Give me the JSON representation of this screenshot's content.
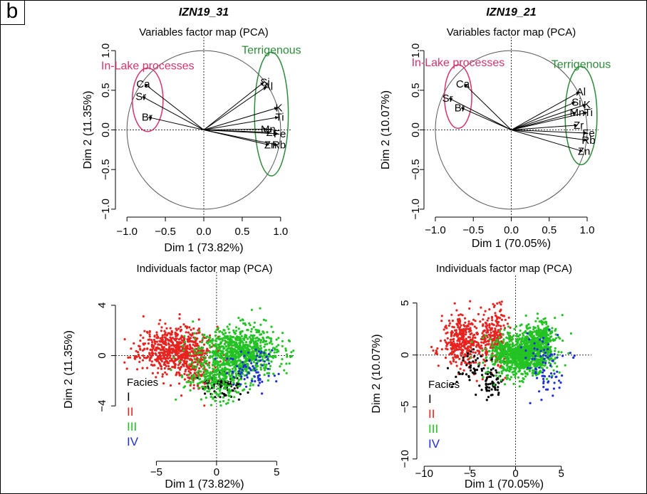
{
  "panel_label": "b",
  "colors": {
    "lake": "#d6336c",
    "terrigenous": "#2e8b3a",
    "facies_I": "#000000",
    "facies_II": "#e8231f",
    "facies_III": "#22c322",
    "facies_IV": "#1f2fd6"
  },
  "chart_data": [
    {
      "type": "scatter",
      "subtype": "pca-variables",
      "title": "IZN19_31",
      "subtitle": "Variables factor map (PCA)",
      "xlabel": "Dim 1 (73.82%)",
      "ylabel": "Dim 2 (11.35%)",
      "xlim": [
        -1.15,
        1.15
      ],
      "ylim": [
        -1.1,
        1.1
      ],
      "xticks": [
        -1.0,
        -0.5,
        0.0,
        0.5,
        1.0
      ],
      "xtick_labels": [
        "−1.0",
        "−0.5",
        "0.0",
        "0.5",
        "1.0"
      ],
      "yticks": [
        -1.0,
        -0.5,
        0.0,
        0.5,
        1.0
      ],
      "ytick_labels": [
        "−1.0",
        "−0.5",
        "0.0",
        "0.5",
        "1.0"
      ],
      "variables": [
        {
          "name": "Ca",
          "x": -0.77,
          "y": 0.58
        },
        {
          "name": "Sr",
          "x": -0.8,
          "y": 0.42
        },
        {
          "name": "Br",
          "x": -0.72,
          "y": 0.16
        },
        {
          "name": "Si",
          "x": 0.78,
          "y": 0.6
        },
        {
          "name": "Al",
          "x": 0.82,
          "y": 0.55
        },
        {
          "name": "K",
          "x": 0.96,
          "y": 0.28
        },
        {
          "name": "Ti",
          "x": 0.97,
          "y": 0.16
        },
        {
          "name": "Mn",
          "x": 0.82,
          "y": 0.01
        },
        {
          "name": "Zr",
          "x": 0.86,
          "y": -0.03
        },
        {
          "name": "Fe",
          "x": 0.97,
          "y": -0.05
        },
        {
          "name": "Zn",
          "x": 0.85,
          "y": -0.19
        },
        {
          "name": "Rb",
          "x": 0.96,
          "y": -0.19
        }
      ],
      "groups": [
        {
          "label": "In-Lake processes",
          "color": "lake",
          "cx": -0.73,
          "cy": 0.38,
          "rx": 0.2,
          "ry": 0.4
        },
        {
          "label": "Terrigenous",
          "color": "terrigenous",
          "cx": 0.88,
          "cy": 0.2,
          "rx": 0.22,
          "ry": 0.78
        }
      ]
    },
    {
      "type": "scatter",
      "subtype": "pca-variables",
      "title": "IZN19_21",
      "subtitle": "Variables factor map (PCA)",
      "xlabel": "Dim 1 (70.05%)",
      "ylabel": "Dim 2 (10.07%)",
      "xlim": [
        -1.15,
        1.15
      ],
      "ylim": [
        -1.1,
        1.1
      ],
      "xticks": [
        -1.0,
        -0.5,
        0.0,
        0.5,
        1.0
      ],
      "xtick_labels": [
        "−1.0",
        "−0.5",
        "0.0",
        "0.5",
        "1.0"
      ],
      "yticks": [
        -1.0,
        -0.5,
        0.0,
        0.5,
        1.0
      ],
      "ytick_labels": [
        "−1.0",
        "−0.5",
        "0.0",
        "0.5",
        "1.0"
      ],
      "variables": [
        {
          "name": "Ca",
          "x": -0.62,
          "y": 0.58
        },
        {
          "name": "Sr",
          "x": -0.82,
          "y": 0.4
        },
        {
          "name": "Br",
          "x": -0.66,
          "y": 0.28
        },
        {
          "name": "Al",
          "x": 0.9,
          "y": 0.48
        },
        {
          "name": "Si",
          "x": 0.84,
          "y": 0.35
        },
        {
          "name": "K",
          "x": 0.98,
          "y": 0.32
        },
        {
          "name": "Mn",
          "x": 0.85,
          "y": 0.22
        },
        {
          "name": "Ti",
          "x": 1.0,
          "y": 0.22
        },
        {
          "name": "Zr",
          "x": 0.87,
          "y": 0.06
        },
        {
          "name": "Fe",
          "x": 1.0,
          "y": -0.04
        },
        {
          "name": "Rb",
          "x": 1.0,
          "y": -0.13
        },
        {
          "name": "Zn",
          "x": 0.94,
          "y": -0.27
        }
      ],
      "groups": [
        {
          "label": "In-Lake processes",
          "color": "lake",
          "cx": -0.7,
          "cy": 0.42,
          "rx": 0.18,
          "ry": 0.4
        },
        {
          "label": "Terrigenous",
          "color": "terrigenous",
          "cx": 0.92,
          "cy": 0.18,
          "rx": 0.21,
          "ry": 0.62
        }
      ]
    },
    {
      "type": "scatter",
      "subtype": "pca-individuals",
      "title": "",
      "subtitle": "Individuals factor map (PCA)",
      "xlabel": "Dim 1 (73.82%)",
      "ylabel": "Dim 2 (11.35%)",
      "xlim": [
        -8.4,
        6.4
      ],
      "ylim": [
        -8.4,
        6.2
      ],
      "xticks": [
        -5,
        0,
        5
      ],
      "xtick_labels": [
        "−5",
        "0",
        "5"
      ],
      "yticks": [
        -4,
        0,
        4
      ],
      "ytick_labels": [
        "−4",
        "0",
        "4"
      ],
      "legend": {
        "title": "Facies",
        "position": "bottom-left",
        "entries": [
          {
            "label": "I",
            "color": "facies_I"
          },
          {
            "label": "II",
            "color": "facies_II"
          },
          {
            "label": "III",
            "color": "facies_III"
          },
          {
            "label": "IV",
            "color": "facies_IV"
          }
        ]
      },
      "clusters": [
        {
          "facies": "II",
          "color": "facies_II",
          "n": 650,
          "cx": -3.4,
          "cy": 0.5,
          "sx": 1.5,
          "sy": 0.9,
          "seed": 11
        },
        {
          "facies": "II",
          "color": "facies_II",
          "n": 100,
          "cx": -1.6,
          "cy": -1.2,
          "sx": 0.9,
          "sy": 0.9,
          "seed": 12
        },
        {
          "facies": "I",
          "color": "facies_I",
          "n": 90,
          "cx": 0.5,
          "cy": -2.3,
          "sx": 0.9,
          "sy": 0.5,
          "seed": 13
        },
        {
          "facies": "III",
          "color": "facies_III",
          "n": 850,
          "cx": 2.0,
          "cy": 0.3,
          "sx": 1.6,
          "sy": 1.0,
          "seed": 14
        },
        {
          "facies": "III",
          "color": "facies_III",
          "n": 250,
          "cx": 0.0,
          "cy": -1.6,
          "sx": 1.2,
          "sy": 0.9,
          "seed": 15
        },
        {
          "facies": "IV",
          "color": "facies_IV",
          "n": 80,
          "cx": 3.0,
          "cy": -1.0,
          "sx": 1.0,
          "sy": 0.8,
          "seed": 16
        }
      ]
    },
    {
      "type": "scatter",
      "subtype": "pca-individuals",
      "title": "",
      "subtitle": "Individuals factor map (PCA)",
      "xlabel": "Dim 1 (70.05%)",
      "ylabel": "Dim 2 (10.07%)",
      "xlim": [
        -10.8,
        8.3
      ],
      "ylim": [
        -10.7,
        7.1
      ],
      "xticks": [
        -10,
        -5,
        0,
        5
      ],
      "xtick_labels": [
        "−10",
        "−5",
        "0",
        "5"
      ],
      "yticks": [
        -10,
        -5,
        0,
        5
      ],
      "ytick_labels": [
        "−10",
        "−5",
        "0",
        "5"
      ],
      "legend": {
        "title": "Facies",
        "position": "bottom-left",
        "entries": [
          {
            "label": "I",
            "color": "facies_I"
          },
          {
            "label": "II",
            "color": "facies_II"
          },
          {
            "label": "III",
            "color": "facies_III"
          },
          {
            "label": "IV",
            "color": "facies_IV"
          }
        ]
      },
      "clusters": [
        {
          "facies": "II",
          "color": "facies_II",
          "n": 350,
          "cx": -5.8,
          "cy": 1.2,
          "sx": 1.1,
          "sy": 1.2,
          "seed": 21
        },
        {
          "facies": "II",
          "color": "facies_II",
          "n": 250,
          "cx": -2.4,
          "cy": 1.6,
          "sx": 0.8,
          "sy": 1.4,
          "seed": 22
        },
        {
          "facies": "I",
          "color": "facies_I",
          "n": 60,
          "cx": -2.6,
          "cy": -2.8,
          "sx": 0.5,
          "sy": 0.6,
          "seed": 23
        },
        {
          "facies": "I",
          "color": "facies_I",
          "n": 50,
          "cx": -5.0,
          "cy": -1.5,
          "sx": 1.2,
          "sy": 1.0,
          "seed": 24
        },
        {
          "facies": "III",
          "color": "facies_III",
          "n": 900,
          "cx": 0.6,
          "cy": 0.0,
          "sx": 1.6,
          "sy": 1.0,
          "seed": 25
        },
        {
          "facies": "III",
          "color": "facies_III",
          "n": 300,
          "cx": 2.7,
          "cy": 1.5,
          "sx": 0.9,
          "sy": 1.0,
          "seed": 26
        },
        {
          "facies": "IV",
          "color": "facies_IV",
          "n": 80,
          "cx": 3.2,
          "cy": -0.8,
          "sx": 1.2,
          "sy": 1.6,
          "seed": 27
        }
      ]
    }
  ]
}
